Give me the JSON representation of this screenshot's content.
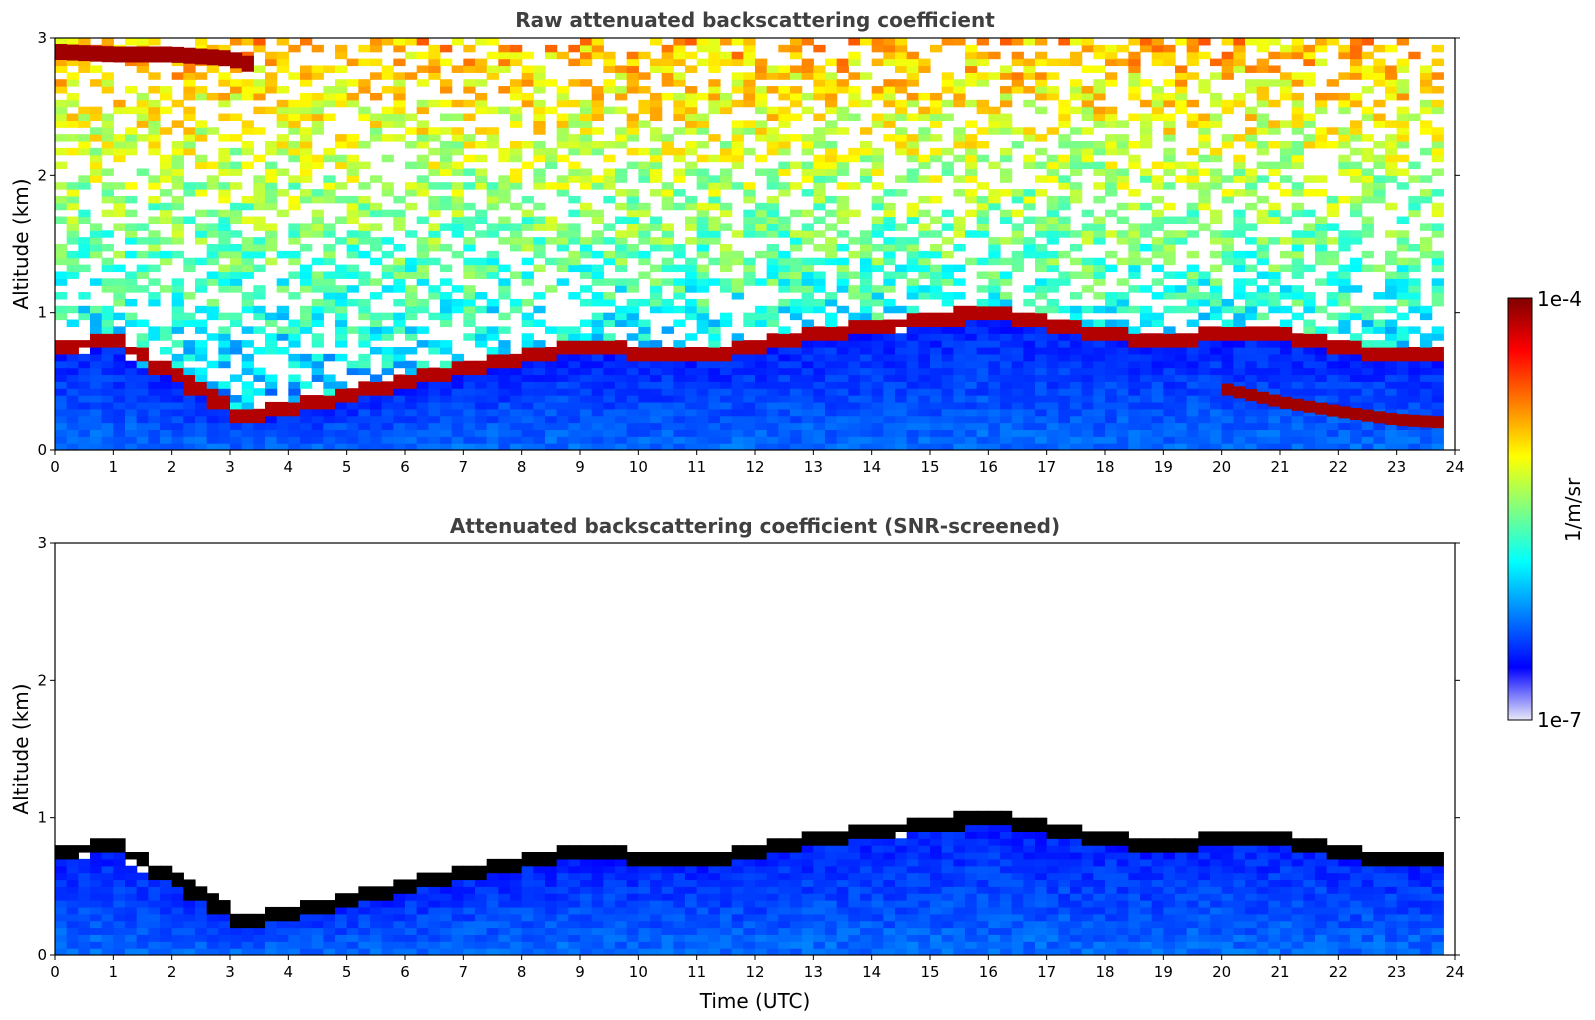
{
  "chart_data": [
    {
      "type": "heatmap",
      "title": "Raw attenuated backscattering coefficient",
      "xlabel": "",
      "ylabel": "Altitude (km)",
      "xlim": [
        0,
        24
      ],
      "ylim": [
        0,
        3
      ],
      "x_ticks": [
        "0",
        "1",
        "2",
        "3",
        "4",
        "5",
        "6",
        "7",
        "8",
        "9",
        "10",
        "11",
        "12",
        "13",
        "14",
        "15",
        "16",
        "17",
        "18",
        "19",
        "20",
        "21",
        "22",
        "23",
        "24"
      ],
      "y_ticks": [
        "0",
        "1",
        "2",
        "3"
      ],
      "features": {
        "boundary_layer_top_km": [
          [
            0.0,
            0.75
          ],
          [
            1.0,
            0.8
          ],
          [
            3.2,
            0.25
          ],
          [
            4.0,
            0.3
          ],
          [
            5.0,
            0.4
          ],
          [
            6.0,
            0.5
          ],
          [
            7.0,
            0.6
          ],
          [
            8.0,
            0.68
          ],
          [
            9.0,
            0.75
          ],
          [
            10.0,
            0.72
          ],
          [
            11.0,
            0.7
          ],
          [
            12.0,
            0.75
          ],
          [
            13.0,
            0.85
          ],
          [
            14.0,
            0.9
          ],
          [
            15.0,
            0.95
          ],
          [
            16.0,
            1.0
          ],
          [
            17.0,
            0.92
          ],
          [
            18.0,
            0.85
          ],
          [
            19.0,
            0.8
          ],
          [
            20.0,
            0.85
          ],
          [
            21.0,
            0.85
          ],
          [
            22.0,
            0.75
          ],
          [
            23.0,
            0.7
          ],
          [
            23.8,
            0.7
          ]
        ],
        "upper_cloud_layer_km": [
          [
            0.0,
            2.9
          ],
          [
            1.0,
            2.88
          ],
          [
            2.0,
            2.88
          ],
          [
            3.0,
            2.85
          ],
          [
            3.4,
            2.8
          ]
        ],
        "residual_layer_km": [
          [
            20.0,
            0.45
          ],
          [
            21.0,
            0.35
          ],
          [
            22.0,
            0.28
          ],
          [
            23.0,
            0.22
          ],
          [
            23.8,
            0.2
          ]
        ]
      }
    },
    {
      "type": "heatmap",
      "title": "Attenuated backscattering coefficient (SNR-screened)",
      "xlabel": "Time (UTC)",
      "ylabel": "Altitude (km)",
      "xlim": [
        0,
        24
      ],
      "ylim": [
        0,
        3
      ],
      "x_ticks": [
        "0",
        "1",
        "2",
        "3",
        "4",
        "5",
        "6",
        "7",
        "8",
        "9",
        "10",
        "11",
        "12",
        "13",
        "14",
        "15",
        "16",
        "17",
        "18",
        "19",
        "20",
        "21",
        "22",
        "23",
        "24"
      ],
      "y_ticks": [
        "0",
        "1",
        "2",
        "3"
      ],
      "features": {
        "boundary_layer_top_km": [
          [
            0.0,
            0.75
          ],
          [
            1.0,
            0.8
          ],
          [
            3.2,
            0.25
          ],
          [
            4.0,
            0.3
          ],
          [
            5.0,
            0.4
          ],
          [
            6.0,
            0.5
          ],
          [
            7.0,
            0.6
          ],
          [
            8.0,
            0.68
          ],
          [
            9.0,
            0.75
          ],
          [
            10.0,
            0.72
          ],
          [
            11.0,
            0.7
          ],
          [
            12.0,
            0.75
          ],
          [
            13.0,
            0.85
          ],
          [
            14.0,
            0.9
          ],
          [
            15.0,
            0.95
          ],
          [
            16.0,
            1.0
          ],
          [
            17.0,
            0.92
          ],
          [
            18.0,
            0.85
          ],
          [
            19.0,
            0.8
          ],
          [
            20.0,
            0.85
          ],
          [
            21.0,
            0.85
          ],
          [
            22.0,
            0.75
          ],
          [
            23.0,
            0.7
          ],
          [
            23.8,
            0.7
          ]
        ]
      }
    }
  ],
  "colorbar": {
    "label": "1/m/sr",
    "max_label": "1e-4",
    "min_label": "1e-7",
    "scale": "log",
    "colormap": [
      "#e8e8f8",
      "#0000ff",
      "#0080ff",
      "#00ffff",
      "#80ff80",
      "#ffff00",
      "#ff8000",
      "#ff0000",
      "#800000"
    ]
  }
}
